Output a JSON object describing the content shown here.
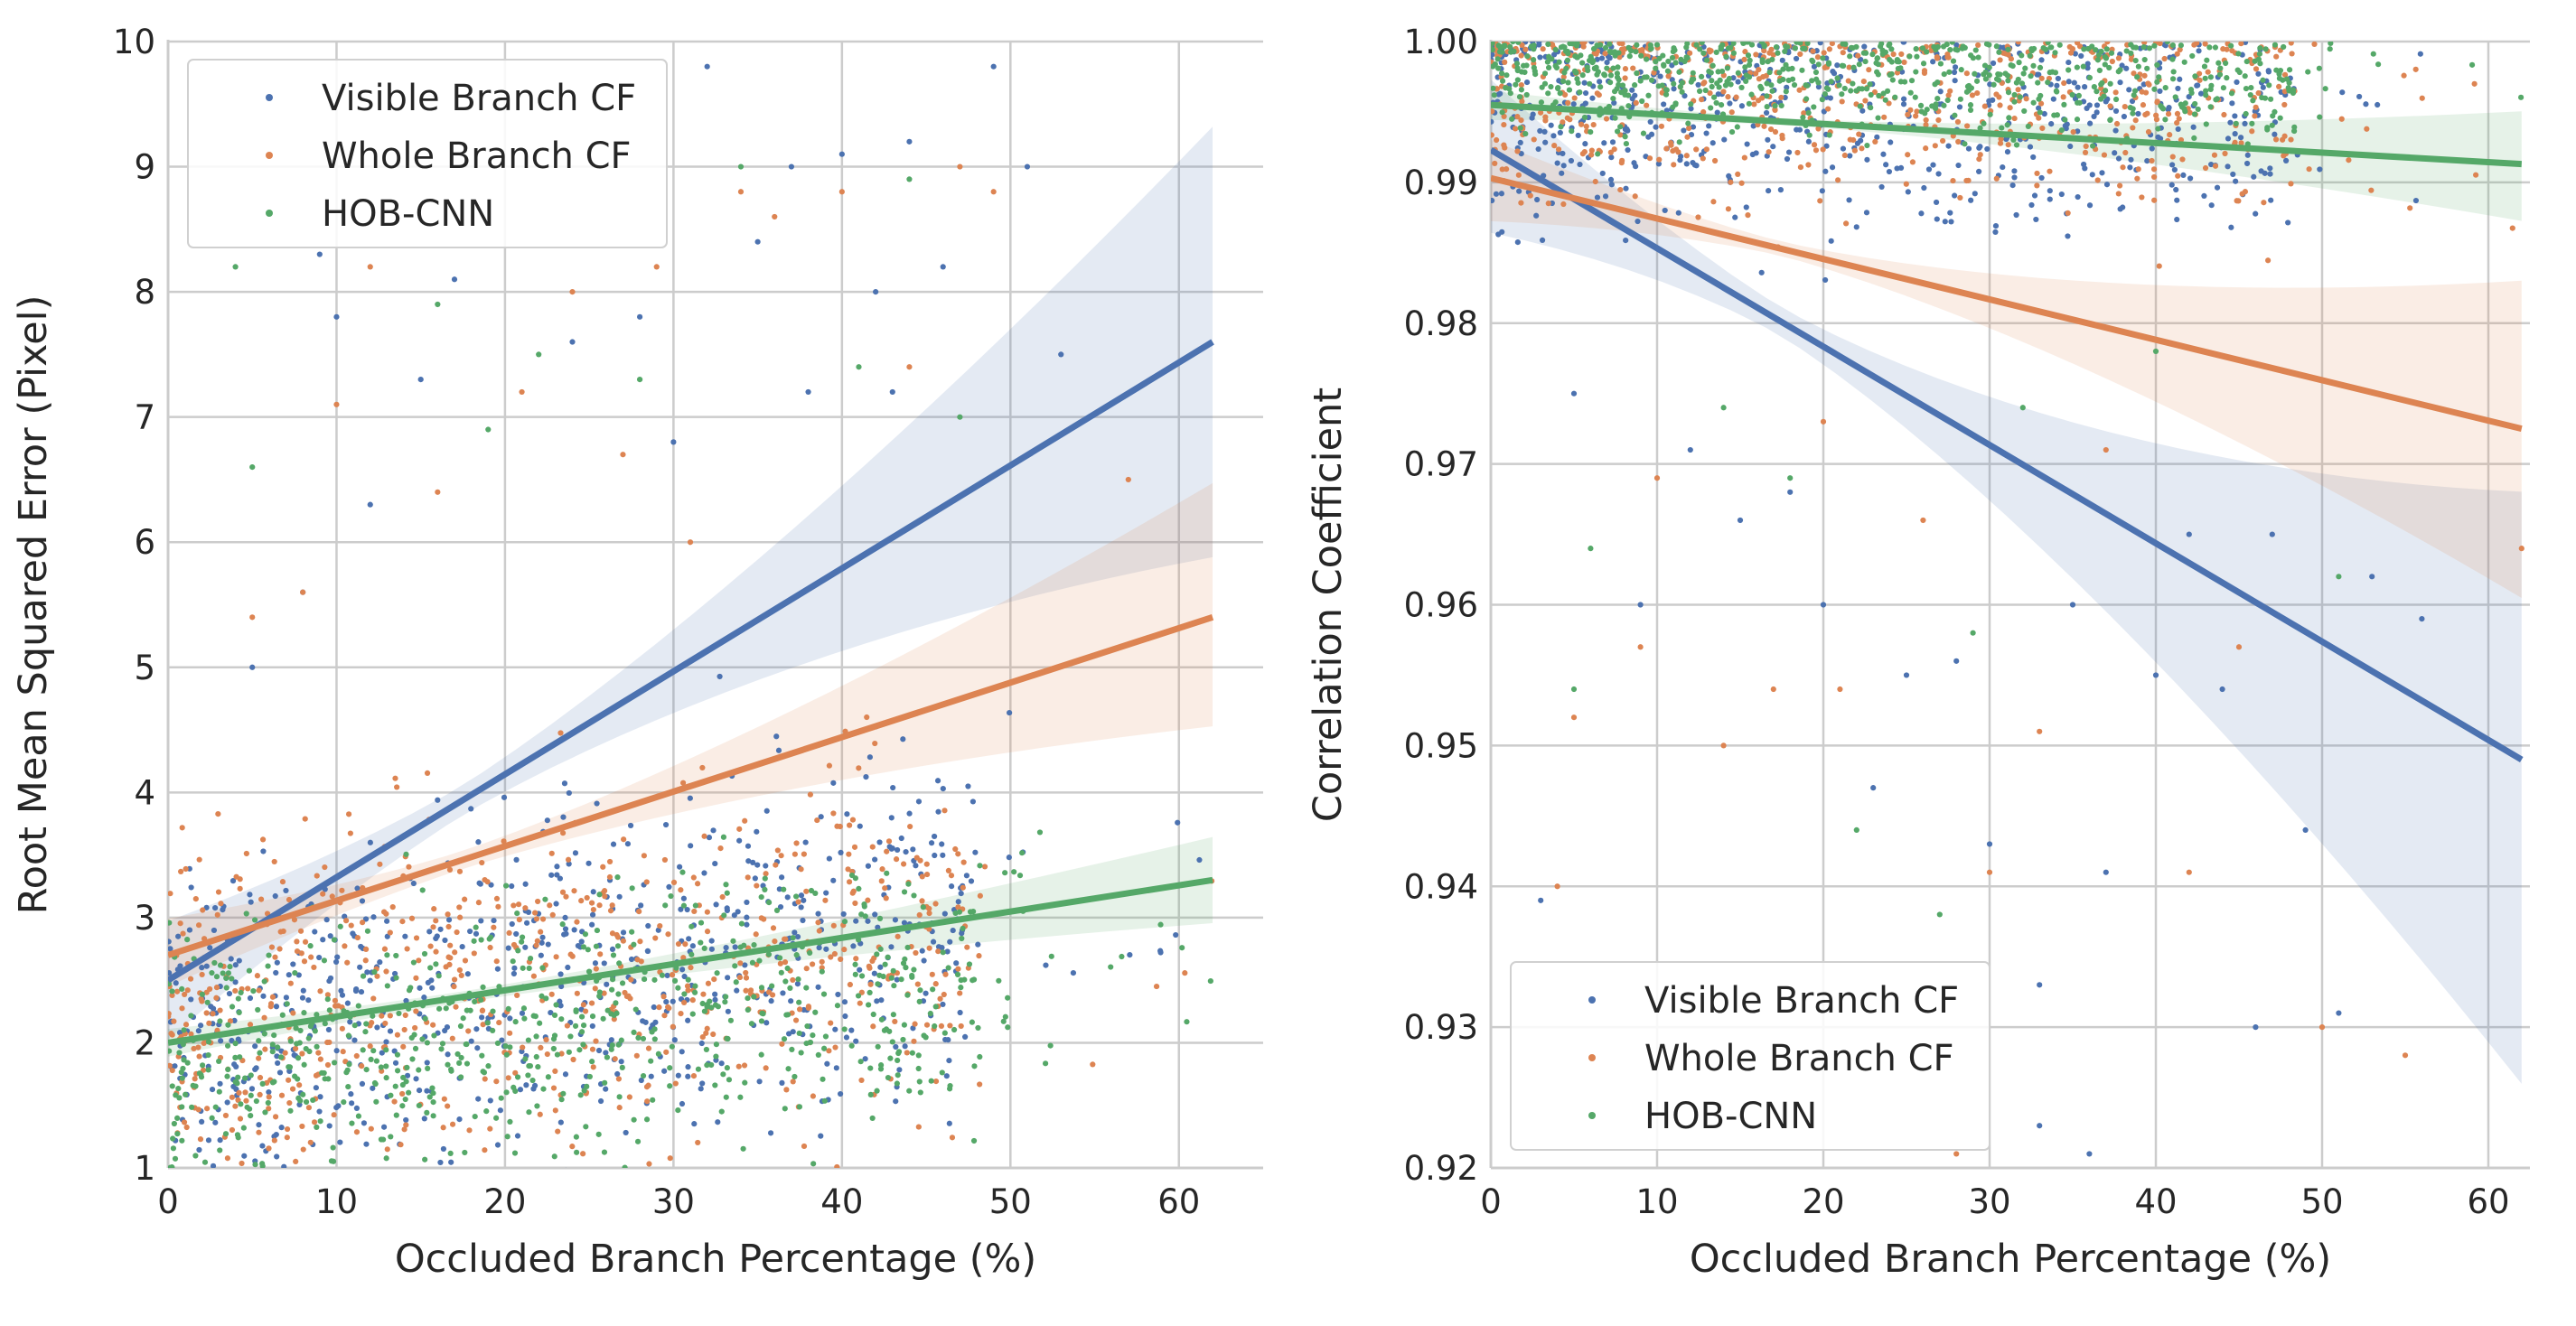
{
  "chart_data": [
    {
      "type": "scatter",
      "xlabel": "Occluded Branch Percentage (%)",
      "ylabel": "Root Mean Squared Error (Pixel)",
      "xlim": [
        0,
        65
      ],
      "ylim": [
        1,
        10
      ],
      "xticks": [
        "0",
        "10",
        "20",
        "30",
        "40",
        "50",
        "60"
      ],
      "yticks": [
        "1",
        "2",
        "3",
        "4",
        "5",
        "6",
        "7",
        "8",
        "9",
        "10"
      ],
      "grid": true,
      "legend_position": "top-left",
      "series": [
        {
          "name": "Visible Branch CF",
          "color": "#4c72b0",
          "regression": {
            "x": [
              0,
              62
            ],
            "y": [
              2.5,
              7.6
            ],
            "ci_lower_end": 6.0,
            "ci_upper_end": 9.2
          },
          "cloud": {
            "x_range": [
              0,
              62
            ],
            "y_center_at_x0": 2.0,
            "y_center_at_xmax": 3.2,
            "spread": 0.7,
            "n": 700,
            "outliers": [
              [
                5,
                5.0
              ],
              [
                8,
                5.6
              ],
              [
                10,
                7.8
              ],
              [
                12,
                6.3
              ],
              [
                15,
                7.3
              ],
              [
                17,
                8.1
              ],
              [
                24,
                7.6
              ],
              [
                28,
                7.8
              ],
              [
                32,
                9.8
              ],
              [
                35,
                8.4
              ],
              [
                37,
                9.0
              ],
              [
                40,
                9.1
              ],
              [
                42,
                8.0
              ],
              [
                44,
                9.2
              ],
              [
                49,
                9.8
              ],
              [
                51,
                9.0
              ],
              [
                53,
                7.5
              ],
              [
                46,
                8.2
              ],
              [
                38,
                7.2
              ],
              [
                30,
                6.8
              ],
              [
                43,
                7.2
              ],
              [
                9,
                8.3
              ]
            ]
          }
        },
        {
          "name": "Whole Branch CF",
          "color": "#dd8452",
          "regression": {
            "x": [
              0,
              62
            ],
            "y": [
              2.7,
              5.4
            ],
            "ci_lower_end": 4.6,
            "ci_upper_end": 6.4
          },
          "cloud": {
            "x_range": [
              0,
              62
            ],
            "y_center_at_x0": 2.1,
            "y_center_at_xmax": 3.0,
            "spread": 0.7,
            "n": 700,
            "outliers": [
              [
                5,
                5.4
              ],
              [
                10,
                7.1
              ],
              [
                12,
                8.2
              ],
              [
                16,
                6.4
              ],
              [
                21,
                7.2
              ],
              [
                24,
                8.0
              ],
              [
                27,
                6.7
              ],
              [
                29,
                8.2
              ],
              [
                34,
                8.8
              ],
              [
                36,
                8.6
              ],
              [
                40,
                8.8
              ],
              [
                44,
                7.4
              ],
              [
                47,
                9.0
              ],
              [
                49,
                8.8
              ],
              [
                57,
                6.5
              ],
              [
                8,
                5.6
              ],
              [
                31,
                6.0
              ]
            ]
          }
        },
        {
          "name": "HOB-CNN",
          "color": "#55a868",
          "regression": {
            "x": [
              0,
              62
            ],
            "y": [
              2.0,
              3.3
            ],
            "ci_lower_end": 3.0,
            "ci_upper_end": 3.6
          },
          "cloud": {
            "x_range": [
              0,
              62
            ],
            "y_center_at_x0": 1.8,
            "y_center_at_xmax": 2.7,
            "spread": 0.55,
            "n": 700,
            "outliers": [
              [
                4,
                8.2
              ],
              [
                5,
                6.6
              ],
              [
                16,
                7.9
              ],
              [
                19,
                6.9
              ],
              [
                22,
                7.5
              ],
              [
                28,
                7.3
              ],
              [
                34,
                9.0
              ],
              [
                41,
                7.4
              ],
              [
                47,
                7.0
              ],
              [
                44,
                8.9
              ]
            ]
          }
        }
      ]
    },
    {
      "type": "scatter",
      "xlabel": "Occluded Branch Percentage (%)",
      "ylabel": "Correlation Coefficient",
      "xlim": [
        0,
        62.5
      ],
      "ylim": [
        0.92,
        1.0
      ],
      "xticks": [
        "0",
        "10",
        "20",
        "30",
        "40",
        "50",
        "60"
      ],
      "yticks": [
        "0.92",
        "0.93",
        "0.94",
        "0.95",
        "0.96",
        "0.97",
        "0.98",
        "0.99",
        "1.00"
      ],
      "grid": true,
      "legend_position": "bottom-left",
      "series": [
        {
          "name": "Visible Branch CF",
          "color": "#4c72b0",
          "regression": {
            "x": [
              0,
              62
            ],
            "y": [
              0.9923,
              0.949
            ],
            "ci_lower_end": 0.927,
            "ci_upper_end": 0.967
          },
          "cloud": {
            "x_range": [
              0,
              62
            ],
            "y_center_at_x0": 0.996,
            "y_center_at_xmax": 0.994,
            "spread": 0.004,
            "n": 600,
            "outliers": [
              [
                5,
                0.975
              ],
              [
                9,
                0.96
              ],
              [
                12,
                0.971
              ],
              [
                15,
                0.966
              ],
              [
                18,
                0.968
              ],
              [
                20,
                0.96
              ],
              [
                23,
                0.947
              ],
              [
                25,
                0.955
              ],
              [
                28,
                0.956
              ],
              [
                30,
                0.943
              ],
              [
                33,
                0.933
              ],
              [
                35,
                0.96
              ],
              [
                37,
                0.941
              ],
              [
                40,
                0.955
              ],
              [
                44,
                0.954
              ],
              [
                46,
                0.93
              ],
              [
                49,
                0.944
              ],
              [
                51,
                0.931
              ],
              [
                53,
                0.962
              ],
              [
                56,
                0.959
              ],
              [
                36,
                0.921
              ],
              [
                33,
                0.923
              ],
              [
                42,
                0.965
              ],
              [
                47,
                0.965
              ],
              [
                3,
                0.939
              ]
            ]
          }
        },
        {
          "name": "Whole Branch CF",
          "color": "#dd8452",
          "regression": {
            "x": [
              0,
              62
            ],
            "y": [
              0.9903,
              0.9725
            ],
            "ci_lower_end": 0.961,
            "ci_upper_end": 0.9825
          },
          "cloud": {
            "x_range": [
              0,
              62
            ],
            "y_center_at_x0": 0.997,
            "y_center_at_xmax": 0.995,
            "spread": 0.004,
            "n": 600,
            "outliers": [
              [
                4,
                0.94
              ],
              [
                5,
                0.952
              ],
              [
                9,
                0.957
              ],
              [
                14,
                0.95
              ],
              [
                17,
                0.954
              ],
              [
                21,
                0.954
              ],
              [
                26,
                0.966
              ],
              [
                28,
                0.921
              ],
              [
                30,
                0.941
              ],
              [
                33,
                0.951
              ],
              [
                37,
                0.971
              ],
              [
                42,
                0.941
              ],
              [
                45,
                0.957
              ],
              [
                50,
                0.93
              ],
              [
                55,
                0.928
              ],
              [
                62,
                0.964
              ],
              [
                10,
                0.969
              ],
              [
                20,
                0.973
              ]
            ]
          }
        },
        {
          "name": "HOB-CNN",
          "color": "#55a868",
          "regression": {
            "x": [
              0,
              62
            ],
            "y": [
              0.9955,
              0.9913
            ],
            "ci_lower_end": 0.9875,
            "ci_upper_end": 0.9948
          },
          "cloud": {
            "x_range": [
              0,
              62
            ],
            "y_center_at_x0": 0.998,
            "y_center_at_xmax": 0.997,
            "spread": 0.002,
            "n": 700,
            "outliers": [
              [
                5,
                0.954
              ],
              [
                6,
                0.964
              ],
              [
                18,
                0.969
              ],
              [
                22,
                0.944
              ],
              [
                27,
                0.938
              ],
              [
                29,
                0.958
              ],
              [
                32,
                0.974
              ],
              [
                51,
                0.962
              ],
              [
                14,
                0.974
              ],
              [
                40,
                0.978
              ]
            ]
          }
        }
      ]
    }
  ]
}
